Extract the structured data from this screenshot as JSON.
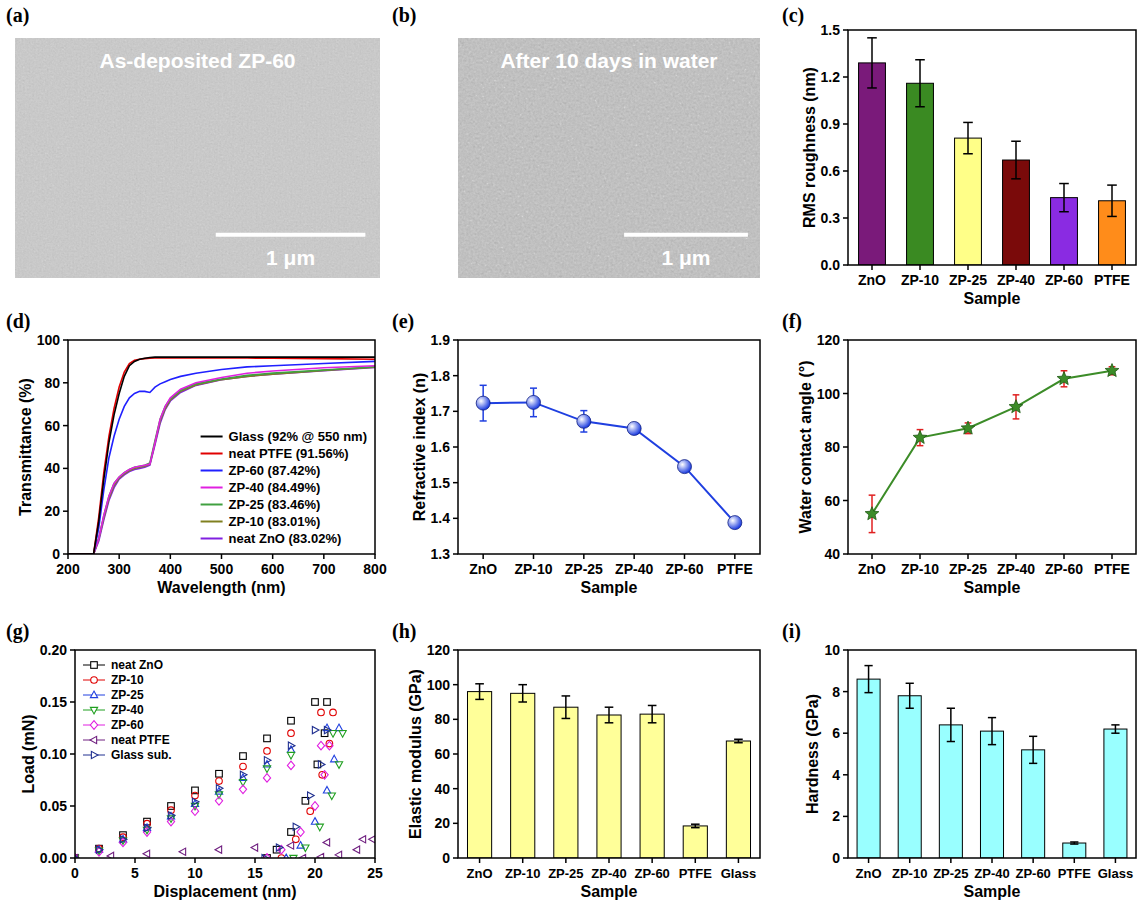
{
  "chart_data": [
    {
      "type": "image",
      "panel_label": "(a)",
      "caption": "As-deposited ZP-60",
      "scale_bar_label": "1 μm"
    },
    {
      "type": "image",
      "panel_label": "(b)",
      "caption": "After 10 days in water",
      "scale_bar_label": "1 μm"
    },
    {
      "type": "bar",
      "panel_label": "(c)",
      "x_label": "Sample",
      "y_label": "RMS roughness (nm)",
      "categories": [
        "ZnO",
        "ZP-10",
        "ZP-25",
        "ZP-40",
        "ZP-60",
        "PTFE"
      ],
      "values": [
        1.29,
        1.16,
        0.81,
        0.67,
        0.43,
        0.41
      ],
      "errors": [
        0.16,
        0.15,
        0.1,
        0.12,
        0.09,
        0.1
      ],
      "colors": [
        "#7a1a7a",
        "#3a8a22",
        "#ffff88",
        "#7a0a0a",
        "#8a2be2",
        "#ff8c1a"
      ],
      "ylim": [
        0,
        1.5
      ],
      "yticks": [
        {
          "value": 0,
          "label": "0.0"
        },
        0.3,
        0.6,
        0.9,
        1.2,
        1.5
      ]
    },
    {
      "type": "line",
      "panel_label": "(d)",
      "x_label": "Wavelength (nm)",
      "y_label": "Transmittance (%)",
      "x": [
        200,
        250,
        260,
        270,
        280,
        290,
        300,
        310,
        320,
        330,
        340,
        350,
        360,
        370,
        380,
        390,
        400,
        420,
        450,
        500,
        550,
        600,
        700,
        800
      ],
      "series": [
        {
          "name": "Glass (92% @ 550 nm)",
          "color": "#000000",
          "values": [
            0,
            0,
            15,
            35,
            52,
            65,
            75,
            83,
            88,
            90,
            91,
            91.5,
            91.8,
            92,
            92,
            92,
            92,
            92,
            92,
            92,
            92,
            92,
            92,
            92
          ]
        },
        {
          "name": "neat PTFE (91.56%)",
          "color": "#e00000",
          "values": [
            0,
            0,
            17,
            38,
            55,
            68,
            78,
            85,
            89,
            90.5,
            91,
            91.3,
            91.5,
            91.6,
            91.6,
            91.6,
            91.6,
            91.6,
            91.6,
            91.6,
            91.56,
            91.5,
            91.3,
            91
          ]
        },
        {
          "name": "ZP-60 (87.42%)",
          "color": "#2020ff",
          "values": [
            0,
            0,
            12,
            30,
            45,
            55,
            63,
            69,
            73,
            75,
            76,
            76,
            75.5,
            78,
            79.5,
            80.5,
            81.5,
            83,
            84.5,
            86.2,
            87.42,
            88,
            89,
            90
          ]
        },
        {
          "name": "ZP-40 (84.49%)",
          "color": "#e020e0",
          "values": [
            0,
            0,
            7,
            18,
            27,
            33,
            36,
            38,
            39.5,
            40.5,
            41,
            41.5,
            42,
            52,
            63,
            69,
            73,
            77,
            80,
            82.5,
            84.49,
            85.5,
            87,
            88
          ]
        },
        {
          "name": "ZP-25 (83.46%)",
          "color": "#40a040",
          "values": [
            0,
            0,
            7,
            18,
            27,
            33,
            36,
            38,
            39.5,
            40.5,
            41,
            41.5,
            42.5,
            53,
            63,
            69,
            72.5,
            76.5,
            79.5,
            81.8,
            83.46,
            84.5,
            86,
            87.5
          ]
        },
        {
          "name": "ZP-10 (83.01%)",
          "color": "#808020",
          "values": [
            0,
            0,
            7,
            17,
            26,
            32,
            35.5,
            37.5,
            39,
            40,
            40.5,
            41,
            42,
            52,
            62,
            68,
            72,
            76,
            79,
            81.5,
            83.01,
            84,
            85.8,
            87.3
          ]
        },
        {
          "name": "neat ZnO (83.02%)",
          "color": "#8020e0",
          "values": [
            0,
            0,
            6,
            16,
            25,
            31,
            35,
            37,
            38.5,
            39.5,
            40,
            40.5,
            41.5,
            51,
            61,
            67.5,
            71.5,
            75.5,
            78.8,
            81.4,
            83.02,
            84,
            85.7,
            87.2
          ]
        }
      ],
      "xlim": [
        200,
        800
      ],
      "xticks": [
        200,
        300,
        400,
        500,
        600,
        700,
        800
      ],
      "ylim": [
        0,
        100
      ],
      "yticks": [
        0,
        20,
        40,
        60,
        80,
        100
      ],
      "legend": "lower right"
    },
    {
      "type": "line",
      "panel_label": "(e)",
      "x_label": "Sample",
      "y_label": "Refractive index (n)",
      "categories": [
        "ZnO",
        "ZP-10",
        "ZP-25",
        "ZP-40",
        "ZP-60",
        "PTFE"
      ],
      "values": [
        1.723,
        1.725,
        1.672,
        1.652,
        1.545,
        1.388
      ],
      "errors": [
        0.05,
        0.04,
        0.03,
        0.01,
        0.01,
        0.01
      ],
      "color": "#1f3fe0",
      "marker": "circle",
      "ylim": [
        1.3,
        1.9
      ],
      "yticks": [
        1.3,
        1.4,
        1.5,
        1.6,
        1.7,
        1.8,
        1.9
      ]
    },
    {
      "type": "line",
      "panel_label": "(f)",
      "x_label": "Sample",
      "y_label": "Water contact angle (°)",
      "categories": [
        "ZnO",
        "ZP-10",
        "ZP-25",
        "ZP-40",
        "ZP-60",
        "PTFE"
      ],
      "values": [
        55,
        83.5,
        87,
        95,
        105.5,
        108.5
      ],
      "errors": [
        7,
        3,
        2,
        4.5,
        3,
        1.5
      ],
      "color": "#3c8c28",
      "marker": "star",
      "ylim": [
        40,
        120
      ],
      "yticks": [
        40,
        60,
        80,
        100,
        120
      ]
    },
    {
      "type": "scatter",
      "panel_label": "(g)",
      "x_label": "Displacement (nm)",
      "y_label": "Load (mN)",
      "series": [
        {
          "name": "neat ZnO",
          "color": "#000000",
          "marker": "square",
          "x": [
            0,
            2,
            4,
            6,
            8,
            10,
            12,
            14,
            16,
            18,
            20,
            21,
            20.8,
            20.2,
            19.2,
            18,
            16.8,
            16
          ],
          "values": [
            0,
            0.009,
            0.022,
            0.035,
            0.05,
            0.065,
            0.081,
            0.098,
            0.115,
            0.132,
            0.15,
            0.15,
            0.12,
            0.09,
            0.055,
            0.025,
            0.008,
            0
          ]
        },
        {
          "name": "ZP-10",
          "color": "#e00000",
          "marker": "circle",
          "x": [
            0,
            2,
            4,
            6,
            8,
            10,
            12,
            14,
            16,
            18,
            20.5,
            21.5,
            21.2,
            20.6,
            19.6,
            18.4,
            17.2
          ],
          "values": [
            0,
            0.009,
            0.02,
            0.033,
            0.046,
            0.06,
            0.074,
            0.088,
            0.103,
            0.12,
            0.14,
            0.14,
            0.11,
            0.08,
            0.045,
            0.018,
            0
          ]
        },
        {
          "name": "ZP-25",
          "color": "#2040e0",
          "marker": "triangle-up",
          "x": [
            0,
            2,
            4,
            6,
            8,
            10,
            12,
            14,
            16,
            18,
            21,
            22,
            21.6,
            21,
            20,
            18.8,
            17.6
          ],
          "values": [
            0,
            0.008,
            0.018,
            0.029,
            0.04,
            0.052,
            0.064,
            0.077,
            0.09,
            0.104,
            0.125,
            0.125,
            0.095,
            0.065,
            0.035,
            0.012,
            0
          ]
        },
        {
          "name": "ZP-40",
          "color": "#20a020",
          "marker": "triangle-down",
          "x": [
            0,
            2,
            4,
            6,
            8,
            10,
            12,
            14,
            16,
            18,
            21.5,
            22.3,
            22,
            21.4,
            20.4,
            19.2,
            18.2
          ],
          "values": [
            0,
            0.007,
            0.017,
            0.027,
            0.038,
            0.05,
            0.061,
            0.073,
            0.086,
            0.099,
            0.12,
            0.12,
            0.09,
            0.06,
            0.03,
            0.01,
            0
          ]
        },
        {
          "name": "ZP-60",
          "color": "#e020e0",
          "marker": "diamond",
          "x": [
            0,
            2,
            4,
            6,
            8,
            10,
            12,
            14,
            16,
            18,
            20.5,
            21.2,
            20.8,
            20,
            18.8,
            17.2,
            16
          ],
          "values": [
            0,
            0.006,
            0.015,
            0.025,
            0.035,
            0.045,
            0.055,
            0.066,
            0.077,
            0.089,
            0.108,
            0.108,
            0.08,
            0.05,
            0.025,
            0.008,
            0
          ]
        },
        {
          "name": "neat PTFE",
          "color": "#702080",
          "marker": "triangle-left",
          "x": [
            0,
            3,
            6,
            9,
            12,
            15,
            18,
            21,
            24,
            24.8,
            23.5,
            22,
            20.5,
            19
          ],
          "values": [
            0,
            0.002,
            0.004,
            0.006,
            0.008,
            0.01,
            0.012,
            0.015,
            0.018,
            0.018,
            0.008,
            0.003,
            0.001,
            0
          ]
        },
        {
          "name": "Glass sub.",
          "color": "#203090",
          "marker": "triangle-right",
          "x": [
            0,
            2,
            4,
            6,
            8,
            10,
            12,
            14,
            16,
            18,
            20,
            21,
            20.5,
            19.6,
            18.4,
            17,
            15.8
          ],
          "values": [
            0,
            0.008,
            0.018,
            0.029,
            0.041,
            0.054,
            0.067,
            0.08,
            0.094,
            0.108,
            0.123,
            0.123,
            0.09,
            0.06,
            0.03,
            0.01,
            0
          ]
        }
      ],
      "xlim": [
        0,
        25
      ],
      "xticks": [
        0,
        5,
        10,
        15,
        20,
        25
      ],
      "ylim": [
        0,
        0.2
      ],
      "yticks": [
        {
          "value": 0,
          "label": "0.00"
        },
        0.05,
        {
          "value": 0.1,
          "label": "0.10"
        },
        0.15,
        {
          "value": 0.2,
          "label": "0.20"
        }
      ],
      "legend": "upper left"
    },
    {
      "type": "bar",
      "panel_label": "(h)",
      "x_label": "Sample",
      "y_label": "Elastic modulus (GPa)",
      "categories": [
        "ZnO",
        "ZP-10",
        "ZP-25",
        "ZP-40",
        "ZP-60",
        "PTFE",
        "Glass"
      ],
      "values": [
        96,
        95,
        87,
        82.5,
        83,
        18.5,
        67.5
      ],
      "errors": [
        4.5,
        5,
        6.5,
        4.5,
        5,
        1,
        1
      ],
      "color": "#ffff99",
      "ylim": [
        0,
        120
      ],
      "yticks": [
        0,
        20,
        40,
        60,
        80,
        100,
        120
      ]
    },
    {
      "type": "bar",
      "panel_label": "(i)",
      "x_label": "Sample",
      "y_label": "Hardness (GPa)",
      "categories": [
        "ZnO",
        "ZP-10",
        "ZP-25",
        "ZP-40",
        "ZP-60",
        "PTFE",
        "Glass"
      ],
      "values": [
        8.6,
        7.8,
        6.4,
        6.1,
        5.2,
        0.72,
        6.2
      ],
      "errors": [
        0.65,
        0.6,
        0.8,
        0.65,
        0.65,
        0.05,
        0.2
      ],
      "color": "#99ffff",
      "ylim": [
        0,
        10
      ],
      "yticks": [
        0,
        2,
        4,
        6,
        8,
        10
      ]
    }
  ]
}
